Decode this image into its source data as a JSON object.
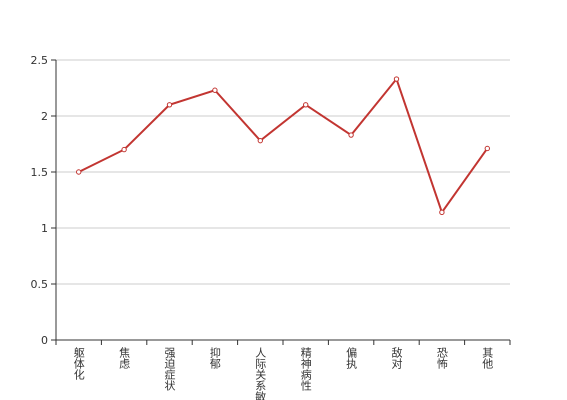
{
  "chart_data": {
    "type": "line",
    "categories": [
      "躯体化",
      "焦虑",
      "强迫症状",
      "抑郁",
      "人际关系敏感",
      "精神病性",
      "偏执",
      "敌对",
      "恐怖",
      "其他"
    ],
    "series": [
      {
        "color": "#c23531",
        "values": [
          1.5,
          1.7,
          2.1,
          2.23,
          1.78,
          2.1,
          1.83,
          2.33,
          1.14,
          1.71
        ]
      }
    ],
    "ylim": [
      0,
      2.5
    ],
    "yticks": [
      0,
      0.5,
      1,
      1.5,
      2,
      2.5
    ],
    "grid": true
  }
}
